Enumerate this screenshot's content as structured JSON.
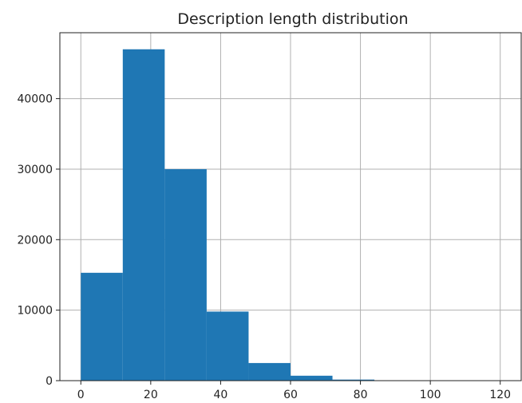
{
  "chart_data": {
    "type": "bar",
    "title": "Description length distribution",
    "xlabel": "",
    "ylabel": "",
    "bins": [
      {
        "x0": 0,
        "x1": 12,
        "count": 15300
      },
      {
        "x0": 12,
        "x1": 24,
        "count": 47000
      },
      {
        "x0": 24,
        "x1": 36,
        "count": 30000
      },
      {
        "x0": 36,
        "x1": 48,
        "count": 9800
      },
      {
        "x0": 48,
        "x1": 60,
        "count": 2500
      },
      {
        "x0": 60,
        "x1": 72,
        "count": 700
      },
      {
        "x0": 72,
        "x1": 84,
        "count": 150
      },
      {
        "x0": 84,
        "x1": 96,
        "count": 40
      },
      {
        "x0": 96,
        "x1": 108,
        "count": 15
      },
      {
        "x0": 108,
        "x1": 120,
        "count": 5
      }
    ],
    "xlim": [
      -6,
      126
    ],
    "ylim": [
      0,
      49350
    ],
    "xticks": [
      0,
      20,
      40,
      60,
      80,
      100,
      120
    ],
    "yticks": [
      0,
      10000,
      20000,
      30000,
      40000
    ],
    "grid": true,
    "bar_color": "#1f77b4",
    "grid_color": "#b0b0b0"
  }
}
